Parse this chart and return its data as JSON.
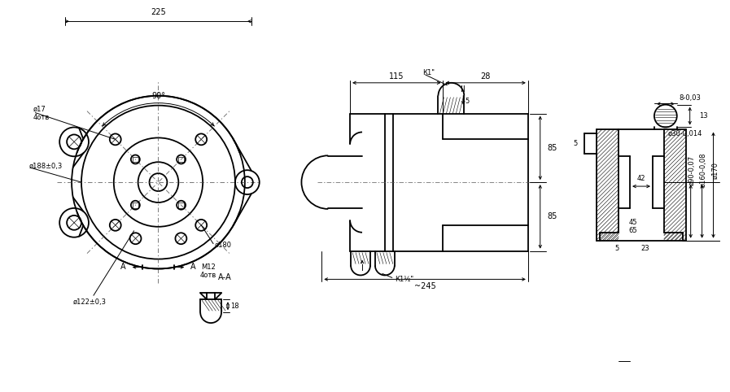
{
  "bg_color": "#ffffff",
  "line_color": "#000000",
  "fig_width": 8.97,
  "fig_height": 4.82,
  "dpi": 100,
  "annotations": {
    "dim_225": "225",
    "dim_90": "90°",
    "dim_85_top": "85",
    "dim_85_bot": "85",
    "dim_115": "115",
    "dim_28": "28",
    "dim_245": "~245",
    "dim_8": "8-0,03",
    "dim_13": "13",
    "dim_phi30": "ø30-0,014",
    "dim_phi90": "ø90-0,07",
    "dim_phi160": "ø160-0,08",
    "dim_phi170": "ø170",
    "dim_42": "42",
    "dim_45": "45",
    "dim_65": "65",
    "dim_5top": "5",
    "dim_23": "23",
    "dim_5bot": "5",
    "dim_phi17": "ø17",
    "dim_4otv": "4отв",
    "dim_phi188": "ø188±0,3",
    "dim_phi122": "ø122±0,3",
    "dim_phi180": "ø180",
    "dim_M12": "M12",
    "dim_4otv2": "4отв",
    "dim_18": "18",
    "label_K1": "К1\"",
    "label_K1_5": "К1½\"",
    "label_II": "II",
    "label_I": "I",
    "label_AA": "А-А",
    "label_A1": "А",
    "label_A2": "А"
  }
}
